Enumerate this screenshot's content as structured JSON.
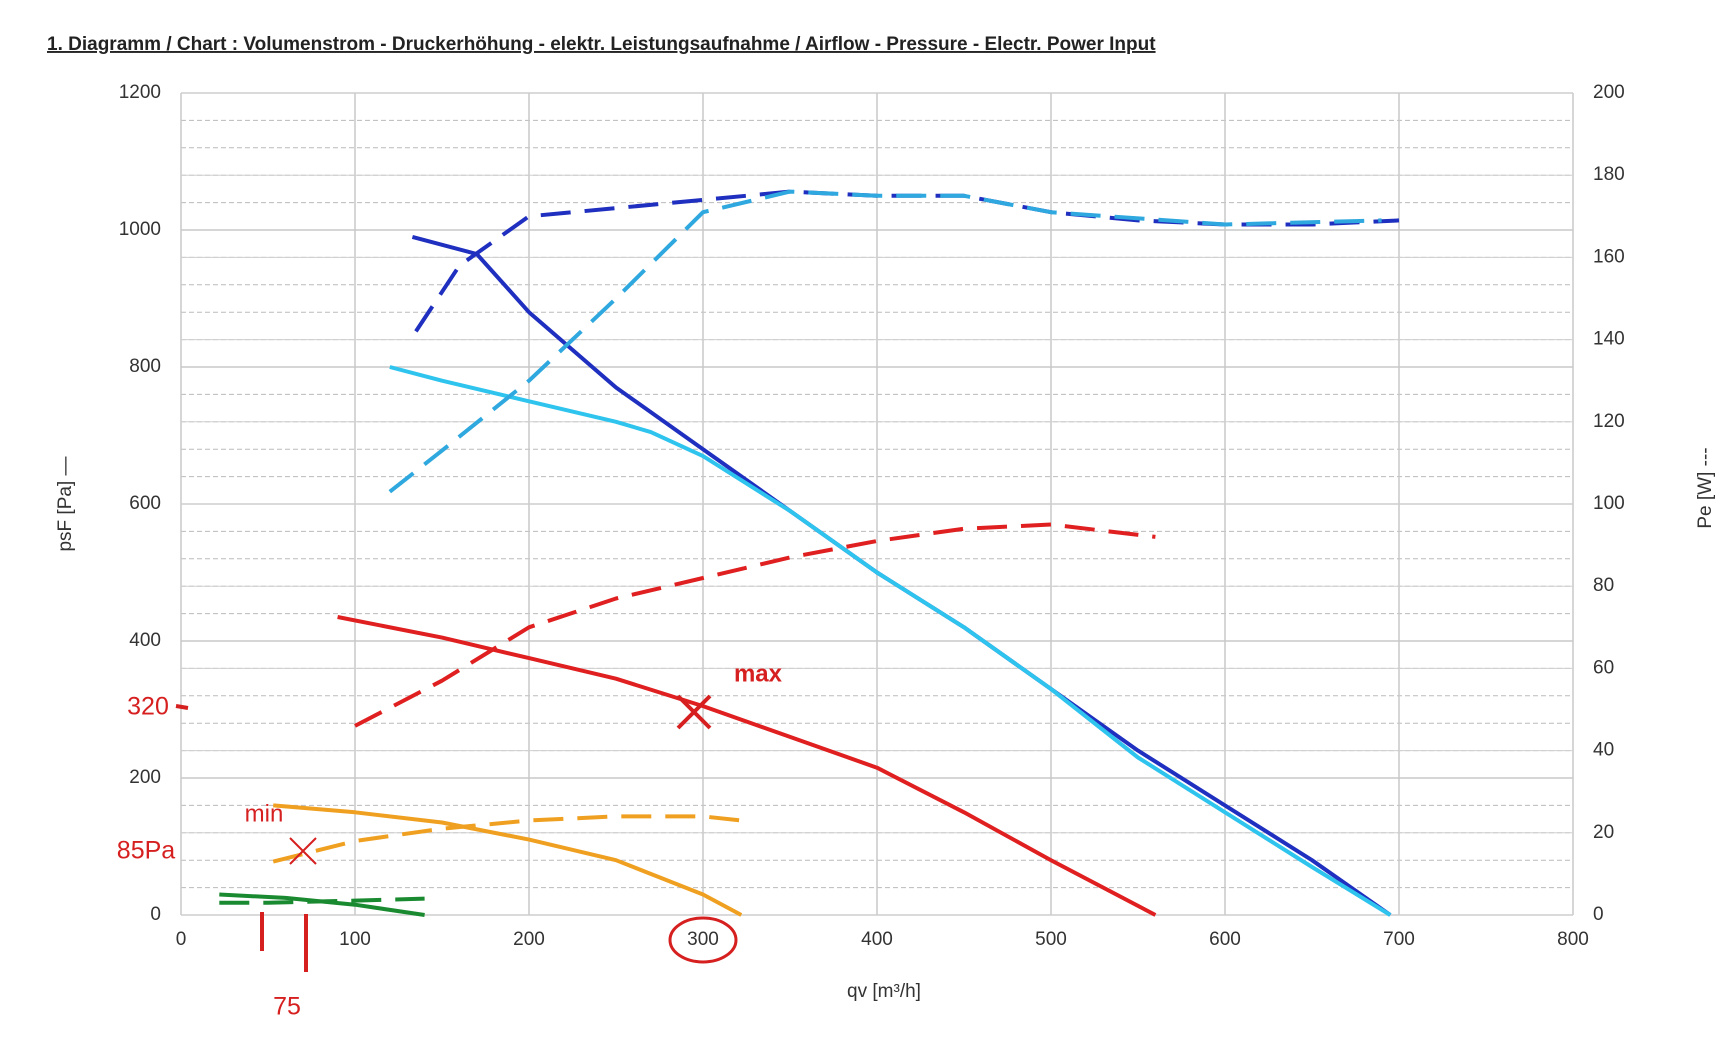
{
  "chart_data": {
    "type": "line",
    "title": "1. Diagramm / Chart :   Volumenstrom - Druckerhöhung - elektr. Leistungsaufnahme / Airflow - Pressure - Electr. Power Input",
    "xlabel": "qv [m³/h]",
    "ylabel": "psF [Pa] —",
    "y2label": "Pe [W] ---",
    "xlim": [
      0,
      800
    ],
    "xticks": [
      0,
      100,
      200,
      300,
      400,
      500,
      600,
      700,
      800
    ],
    "ylim": [
      0,
      1200
    ],
    "yticks": [
      0,
      200,
      400,
      600,
      800,
      1000,
      1200
    ],
    "y2lim": [
      0,
      200
    ],
    "y2ticks": [
      0,
      20,
      40,
      60,
      80,
      100,
      120,
      140,
      160,
      180,
      200
    ],
    "grid": true,
    "series": [
      {
        "color": "#1f2fbf",
        "style": "solid",
        "x": [
          133,
          170,
          200,
          250,
          300,
          350,
          400,
          450,
          500,
          550,
          600,
          650,
          695
        ],
        "values": [
          990,
          965,
          880,
          770,
          680,
          590,
          500,
          420,
          330,
          240,
          160,
          80,
          0
        ]
      },
      {
        "color": "#2ec4ee",
        "style": "solid",
        "x": [
          120,
          150,
          200,
          250,
          270,
          300,
          350,
          400,
          450,
          500,
          550,
          600,
          650,
          695
        ],
        "values": [
          800,
          780,
          750,
          720,
          705,
          670,
          590,
          500,
          420,
          330,
          230,
          150,
          70,
          0
        ]
      },
      {
        "color": "#e02020",
        "style": "solid",
        "x": [
          90,
          150,
          200,
          250,
          300,
          350,
          400,
          450,
          500,
          560
        ],
        "values": [
          435,
          405,
          375,
          345,
          305,
          260,
          215,
          150,
          80,
          0
        ]
      },
      {
        "color": "#f0a020",
        "style": "solid",
        "x": [
          53,
          100,
          150,
          200,
          250,
          300,
          322
        ],
        "values": [
          160,
          150,
          135,
          110,
          80,
          30,
          0
        ]
      },
      {
        "color": "#1a8a30",
        "style": "solid",
        "x": [
          22,
          60,
          100,
          140
        ],
        "values": [
          30,
          25,
          15,
          0
        ]
      },
      {
        "color": "#1f2fbf",
        "style": "dashed",
        "axis": "y2",
        "x": [
          135,
          160,
          200,
          250,
          300,
          350,
          400,
          450,
          500,
          550,
          600,
          650,
          700
        ],
        "values": [
          142,
          158,
          170,
          172,
          174,
          176,
          175,
          175,
          171,
          169,
          168,
          168,
          169
        ]
      },
      {
        "color": "#2ea8de",
        "style": "dashed",
        "axis": "y2",
        "x": [
          120,
          150,
          200,
          250,
          300,
          350,
          400,
          450,
          500,
          600,
          690
        ],
        "values": [
          103,
          113,
          130,
          150,
          171,
          176,
          175,
          175,
          171,
          168,
          169
        ]
      },
      {
        "color": "#e02020",
        "style": "dashed",
        "axis": "y2",
        "x": [
          100,
          150,
          200,
          250,
          300,
          350,
          400,
          450,
          500,
          560
        ],
        "values": [
          46,
          57,
          70,
          77,
          82,
          87,
          91,
          94,
          95,
          92
        ]
      },
      {
        "color": "#f0a020",
        "style": "dashed",
        "axis": "y2",
        "x": [
          53,
          100,
          150,
          200,
          250,
          300,
          322
        ],
        "values": [
          13,
          18,
          21,
          23,
          24,
          24,
          23
        ]
      },
      {
        "color": "#1a8a30",
        "style": "dashed",
        "axis": "y2",
        "x": [
          22,
          50,
          100,
          140
        ],
        "values": [
          3,
          3,
          3.5,
          4
        ]
      }
    ],
    "annotations": [
      "max",
      "min",
      "320",
      "85Pa",
      "75"
    ]
  }
}
